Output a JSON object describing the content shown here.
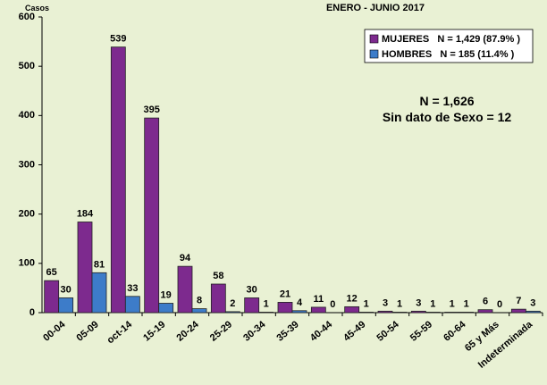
{
  "chart_data": {
    "type": "bar",
    "title": "ENERO - JUNIO 2017",
    "y_label": "Casos",
    "categories": [
      "00-04",
      "05-09",
      "oct-14",
      "15-19",
      "20-24",
      "25-29",
      "30-34",
      "35-39",
      "40-44",
      "45-49",
      "50-54",
      "55-59",
      "60-64",
      "65 y Más",
      "Indeterminada"
    ],
    "series": [
      {
        "name": "MUJERES   N = 1,429 (87.9% )",
        "color": "#7d2a8e",
        "values": [
          65,
          184,
          539,
          395,
          94,
          58,
          30,
          21,
          11,
          12,
          3,
          3,
          1,
          6,
          7
        ]
      },
      {
        "name": "HOMBRES   N = 185 (11.4% )",
        "color": "#3d7cc9",
        "values": [
          30,
          81,
          33,
          19,
          8,
          2,
          1,
          4,
          0,
          1,
          1,
          1,
          1,
          0,
          3
        ]
      }
    ],
    "annotations": [
      "N = 1,626",
      "Sin dato de Sexo = 12"
    ],
    "ylim": [
      0,
      600
    ],
    "yticks": [
      0,
      100,
      200,
      300,
      400,
      500,
      600
    ],
    "legend": "upper right"
  }
}
